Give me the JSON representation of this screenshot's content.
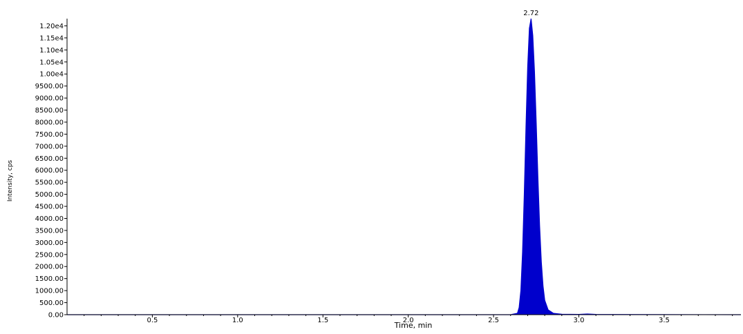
{
  "chart_data": {
    "type": "line",
    "title": "",
    "xlabel": "Time, min",
    "ylabel": "Intensity, cps",
    "xlim": [
      0.0,
      3.95
    ],
    "ylim": [
      0,
      12300
    ],
    "x_ticks": [
      0.5,
      1.0,
      1.5,
      2.0,
      2.5,
      3.0,
      3.5
    ],
    "x_tick_labels": [
      "0.5",
      "1.0",
      "1.5",
      "2.0",
      "2.5",
      "3.0",
      "3.5"
    ],
    "y_ticks": [
      0,
      500,
      1000,
      1500,
      2000,
      2500,
      3000,
      3500,
      4000,
      4500,
      5000,
      5500,
      6000,
      6500,
      7000,
      7500,
      8000,
      8500,
      9000,
      9500,
      10000,
      10500,
      11000,
      11500,
      12000
    ],
    "y_tick_labels": [
      "0.00",
      "500.00",
      "1000.00",
      "1500.00",
      "2000.00",
      "2500.00",
      "3000.00",
      "3500.00",
      "4000.00",
      "4500.00",
      "5000.00",
      "5500.00",
      "6000.00",
      "6500.00",
      "7000.00",
      "7500.00",
      "8000.00",
      "8500.00",
      "9000.00",
      "9500.00",
      "1.00e4",
      "1.05e4",
      "1.10e4",
      "1.15e4",
      "1.20e4"
    ],
    "annotations": [
      {
        "x": 2.72,
        "y": 12300,
        "text": "2.72"
      }
    ],
    "series": [
      {
        "color": "#0000cc",
        "fill": true,
        "x": [
          0.0,
          2.0,
          2.6,
          2.64,
          2.65,
          2.66,
          2.67,
          2.68,
          2.69,
          2.7,
          2.71,
          2.72,
          2.73,
          2.74,
          2.75,
          2.76,
          2.77,
          2.78,
          2.79,
          2.8,
          2.82,
          2.85,
          2.9,
          3.0,
          3.05,
          3.1,
          3.5,
          3.95
        ],
        "y": [
          0,
          0,
          0,
          60,
          300,
          1000,
          2600,
          5000,
          7800,
          10300,
          11900,
          12300,
          11600,
          10100,
          8000,
          5700,
          3700,
          2200,
          1200,
          600,
          200,
          60,
          20,
          10,
          30,
          10,
          5,
          0
        ]
      }
    ]
  }
}
